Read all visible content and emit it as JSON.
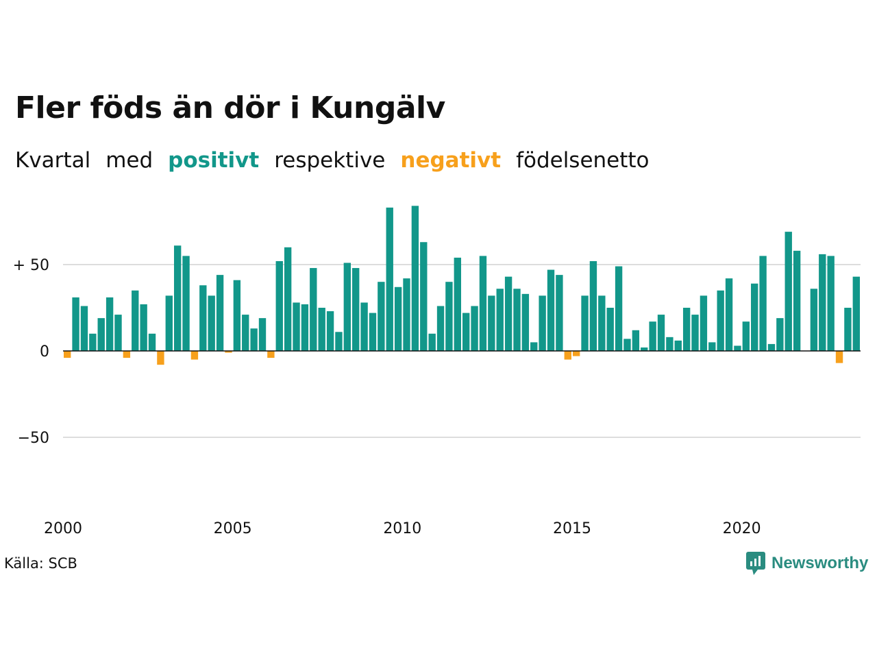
{
  "title": "Fler föds än dör i Kungälv",
  "subtitle": {
    "w1": "Kvartal",
    "w2": "med",
    "positive": "positivt",
    "w3": "respektive",
    "negative": "negativt",
    "w4": "födelsenetto"
  },
  "source": "Källa: SCB",
  "brand": "Newsworthy",
  "colors": {
    "positive": "#12978a",
    "negative": "#f7a01c",
    "grid": "#dddddd",
    "zero": "#111111"
  },
  "chart_data": {
    "type": "bar",
    "x_start": "2000 Q1",
    "frequency": "quarterly",
    "values": [
      -4,
      31,
      26,
      10,
      19,
      31,
      21,
      -4,
      35,
      27,
      10,
      -8,
      32,
      61,
      55,
      -5,
      38,
      32,
      44,
      -1,
      41,
      21,
      13,
      19,
      -4,
      52,
      60,
      28,
      27,
      48,
      25,
      23,
      11,
      51,
      48,
      28,
      22,
      40,
      83,
      37,
      42,
      84,
      63,
      10,
      26,
      40,
      54,
      22,
      26,
      55,
      32,
      36,
      43,
      36,
      33,
      5,
      32,
      47,
      44,
      -5,
      -3,
      32,
      52,
      32,
      25,
      49,
      7,
      12,
      2,
      17,
      21,
      8,
      6,
      25,
      21,
      32,
      5,
      35,
      42,
      3,
      17,
      39,
      55,
      4,
      19,
      69,
      58,
      0,
      36,
      56,
      55,
      -7,
      25,
      43
    ],
    "x_tick_labels": [
      "2000",
      "2005",
      "2010",
      "2015",
      "2020"
    ],
    "y_tick_labels": [
      "+ 50",
      "0",
      "−50"
    ],
    "y_ticks": [
      50,
      0,
      -50
    ],
    "ylim": [
      -100,
      90
    ],
    "grid": true
  }
}
